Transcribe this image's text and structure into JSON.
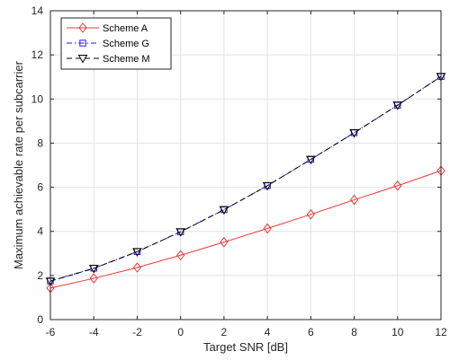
{
  "chart_data": {
    "type": "line",
    "title": "",
    "xlabel": "Target SNR [dB]",
    "ylabel": "Maximum achievable rate per subcarrier",
    "xlim": [
      -6,
      12
    ],
    "ylim": [
      0,
      14
    ],
    "xticks": [
      -6,
      -4,
      -2,
      0,
      2,
      4,
      6,
      8,
      10,
      12
    ],
    "yticks": [
      0,
      2,
      4,
      6,
      8,
      10,
      12,
      14
    ],
    "grid": true,
    "legend_position": "top-left",
    "x": [
      -6,
      -4,
      -2,
      0,
      2,
      4,
      6,
      8,
      10,
      12
    ],
    "series": [
      {
        "name": "Scheme A",
        "color": "#e8393a",
        "line_style": "solid",
        "marker": "diamond",
        "values": [
          1.43,
          1.87,
          2.36,
          2.92,
          3.51,
          4.13,
          4.77,
          5.43,
          6.07,
          6.75
        ]
      },
      {
        "name": "Scheme G",
        "color": "#1f1fcf",
        "line_style": "dashdot",
        "marker": "square",
        "values": [
          1.75,
          2.33,
          3.08,
          3.98,
          4.98,
          6.07,
          7.26,
          8.47,
          9.72,
          11.02
        ]
      },
      {
        "name": "Scheme M",
        "color": "#000000",
        "line_style": "dashed",
        "marker": "triangle-down",
        "values": [
          1.74,
          2.32,
          3.08,
          3.98,
          4.98,
          6.07,
          7.26,
          8.47,
          9.72,
          11.02
        ]
      }
    ]
  }
}
